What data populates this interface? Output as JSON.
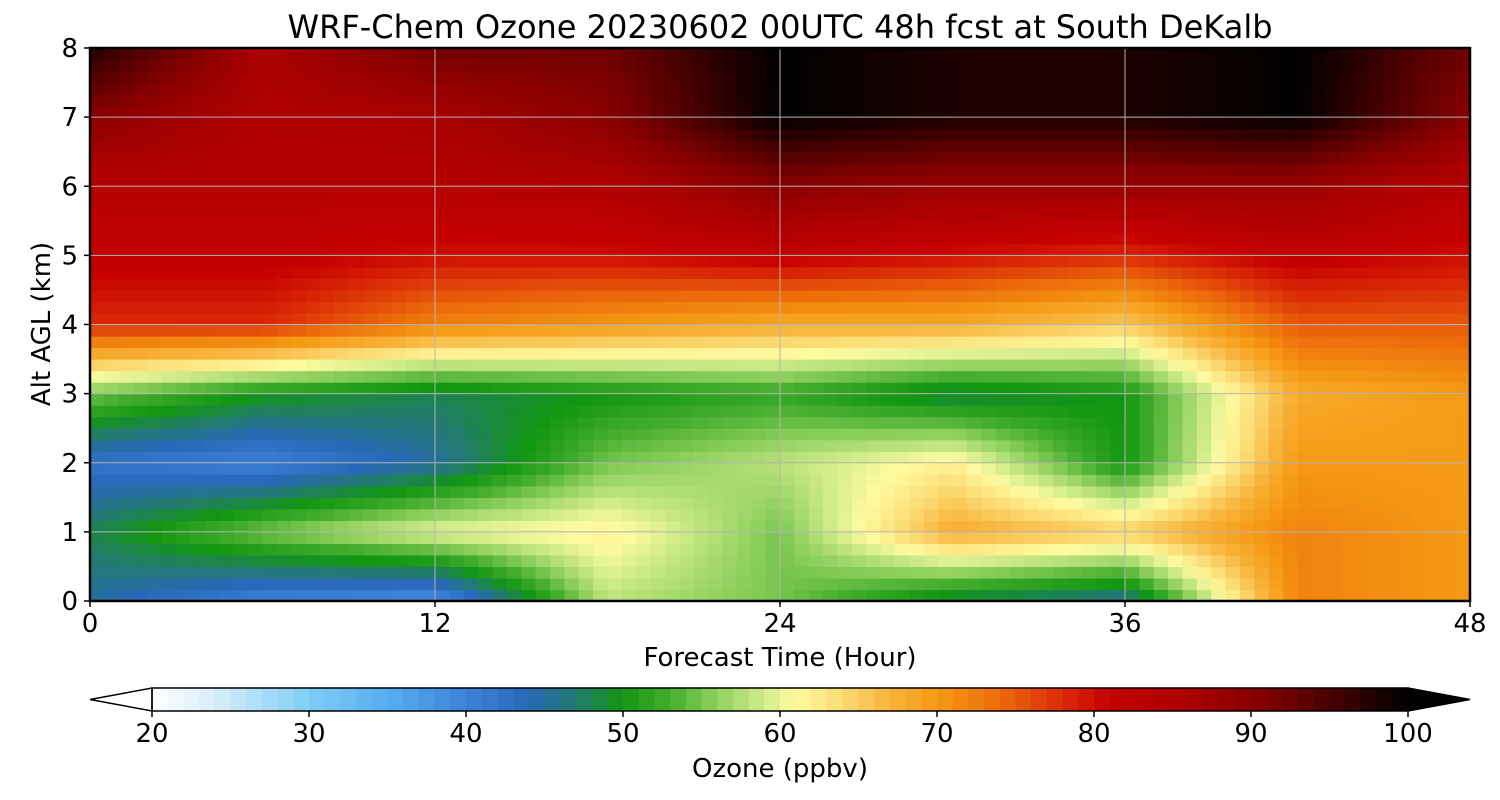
{
  "chart_data": {
    "type": "heatmap",
    "title": "WRF-Chem Ozone  20230602 00UTC 48h fcst at South DeKalb",
    "xlabel": "Forecast Time (Hour)",
    "ylabel": "Alt AGL (km)",
    "xlim": [
      0,
      48
    ],
    "ylim": [
      0,
      8
    ],
    "x_ticks": [
      0,
      12,
      24,
      36,
      48
    ],
    "y_ticks": [
      0,
      1,
      2,
      3,
      4,
      5,
      6,
      7,
      8
    ],
    "grid": true,
    "colorbar": {
      "label": "Ozone  (ppbv)",
      "min": 20,
      "max": 100,
      "ticks": [
        20,
        30,
        40,
        50,
        60,
        70,
        80,
        90,
        100
      ],
      "extend": "both",
      "orientation": "horizontal"
    },
    "x_hours": [
      0,
      6,
      12,
      18,
      24,
      30,
      36,
      42,
      48
    ],
    "y_km": [
      0,
      1,
      2,
      3,
      4,
      5,
      6,
      7,
      8
    ],
    "ozone_ppbv": [
      [
        45,
        40,
        38,
        58,
        55,
        48,
        45,
        72,
        70
      ],
      [
        48,
        55,
        60,
        62,
        55,
        68,
        65,
        72,
        70
      ],
      [
        42,
        40,
        45,
        55,
        58,
        62,
        50,
        70,
        70
      ],
      [
        55,
        50,
        48,
        50,
        52,
        48,
        50,
        68,
        70
      ],
      [
        78,
        78,
        72,
        70,
        68,
        68,
        65,
        75,
        75
      ],
      [
        82,
        82,
        80,
        80,
        82,
        80,
        78,
        82,
        80
      ],
      [
        84,
        84,
        84,
        85,
        90,
        88,
        88,
        88,
        84
      ],
      [
        90,
        85,
        86,
        90,
        100,
        98,
        98,
        100,
        90
      ],
      [
        98,
        86,
        92,
        92,
        100,
        98,
        98,
        100,
        92
      ]
    ]
  }
}
